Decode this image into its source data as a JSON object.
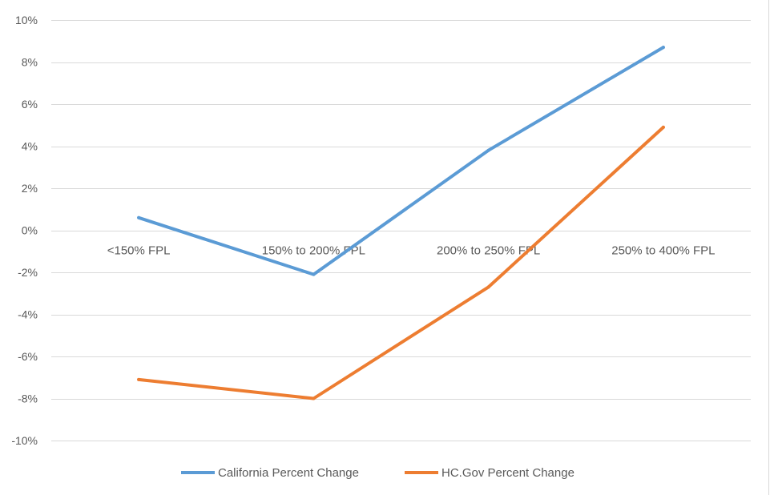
{
  "chart_data": {
    "type": "line",
    "categories": [
      "<150% FPL",
      "150% to 200% FPL",
      "200% to 250% FPL",
      "250% to 400% FPL"
    ],
    "series": [
      {
        "name": "California Percent Change",
        "color": "#5B9BD5",
        "values": [
          0.6,
          -2.1,
          3.8,
          8.7
        ]
      },
      {
        "name": "HC.Gov  Percent Change",
        "color": "#ED7D31",
        "values": [
          -7.1,
          -8.0,
          -2.7,
          4.9
        ]
      }
    ],
    "ylim": [
      -10,
      10
    ],
    "yticks": [
      -10,
      -8,
      -6,
      -4,
      -2,
      0,
      2,
      4,
      6,
      8,
      10
    ],
    "ytick_labels": [
      "-10%",
      "-8%",
      "-6%",
      "-4%",
      "-2%",
      "0%",
      "2%",
      "4%",
      "6%",
      "8%",
      "10%"
    ],
    "grid": true,
    "legend_position": "bottom",
    "title": "",
    "xlabel": "",
    "ylabel": ""
  }
}
